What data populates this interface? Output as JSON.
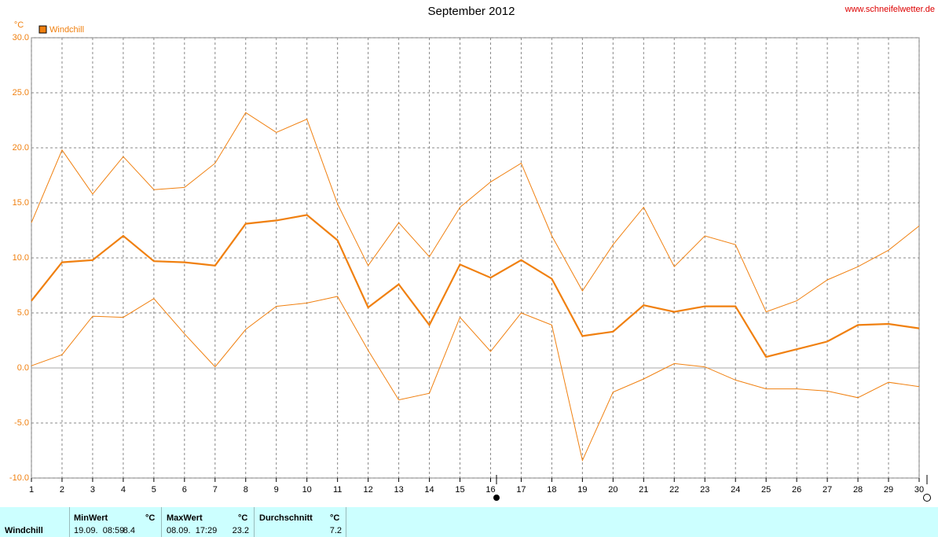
{
  "chart_data": {
    "type": "line",
    "title": "September 2012",
    "source": "www.schneifelwetter.de",
    "y_unit": "°C",
    "x": [
      1,
      2,
      3,
      4,
      5,
      6,
      7,
      8,
      9,
      10,
      11,
      12,
      13,
      14,
      15,
      16,
      17,
      18,
      19,
      20,
      21,
      22,
      23,
      24,
      25,
      26,
      27,
      28,
      29,
      30
    ],
    "xlim": [
      1,
      30
    ],
    "xticks": [
      1,
      2,
      3,
      4,
      5,
      6,
      7,
      8,
      9,
      10,
      11,
      12,
      13,
      14,
      15,
      16,
      17,
      18,
      19,
      20,
      21,
      22,
      23,
      24,
      25,
      26,
      27,
      28,
      29,
      30
    ],
    "ylim": [
      -10,
      30
    ],
    "yticks": [
      {
        "value": -10,
        "label": "-10.0"
      },
      {
        "value": -5,
        "label": "-5.0"
      },
      {
        "value": 0,
        "label": "0.0"
      },
      {
        "value": 5,
        "label": "5.0"
      },
      {
        "value": 10,
        "label": "10.0"
      },
      {
        "value": 15,
        "label": "15.0"
      },
      {
        "value": 20,
        "label": "20.0"
      },
      {
        "value": 25,
        "label": "25.0"
      },
      {
        "value": 30,
        "label": "30.0"
      }
    ],
    "grid": true,
    "series": [
      {
        "color": "#f08010",
        "values": [
          13.2,
          19.8,
          15.8,
          19.2,
          16.2,
          16.4,
          18.6,
          23.2,
          21.4,
          22.6,
          14.9,
          9.3,
          13.2,
          10.1,
          14.6,
          16.9,
          18.6,
          12.0,
          7.0,
          11.2,
          14.6,
          9.2,
          12.0,
          11.2,
          5.1,
          6.1,
          8.0,
          9.2,
          10.7,
          12.9
        ]
      },
      {
        "name": "Windchill",
        "color": "#f08010",
        "values": [
          6.1,
          9.6,
          9.8,
          12.0,
          9.7,
          9.6,
          9.3,
          13.1,
          13.4,
          13.9,
          11.6,
          5.5,
          7.6,
          3.9,
          9.4,
          8.2,
          9.8,
          8.1,
          2.9,
          3.3,
          5.7,
          5.1,
          5.6,
          5.6,
          1.0,
          1.7,
          2.4,
          3.9,
          4.0,
          3.6
        ]
      },
      {
        "color": "#f08010",
        "values": [
          0.2,
          1.2,
          4.7,
          4.6,
          6.3,
          3.1,
          0.1,
          3.5,
          5.6,
          5.9,
          6.5,
          1.6,
          -2.9,
          -2.3,
          4.6,
          1.5,
          5.0,
          3.9,
          -8.4,
          -2.2,
          -1.0,
          0.4,
          0.1,
          -1.1,
          -1.9,
          -1.9,
          -2.1,
          -2.7,
          -1.3,
          -1.7
        ]
      }
    ]
  },
  "table": {
    "label": "Windchill",
    "min_header": "MinWert",
    "min_unit": "°C",
    "min_time": "19.09.  08:59",
    "min_value": -8.4,
    "max_header": "MaxWert",
    "max_unit": "°C",
    "max_time": "08.09.  17:29",
    "max_value": 23.2,
    "avg_header": "Durchschnitt",
    "avg_unit": "°C",
    "avg_value": 7.2
  }
}
